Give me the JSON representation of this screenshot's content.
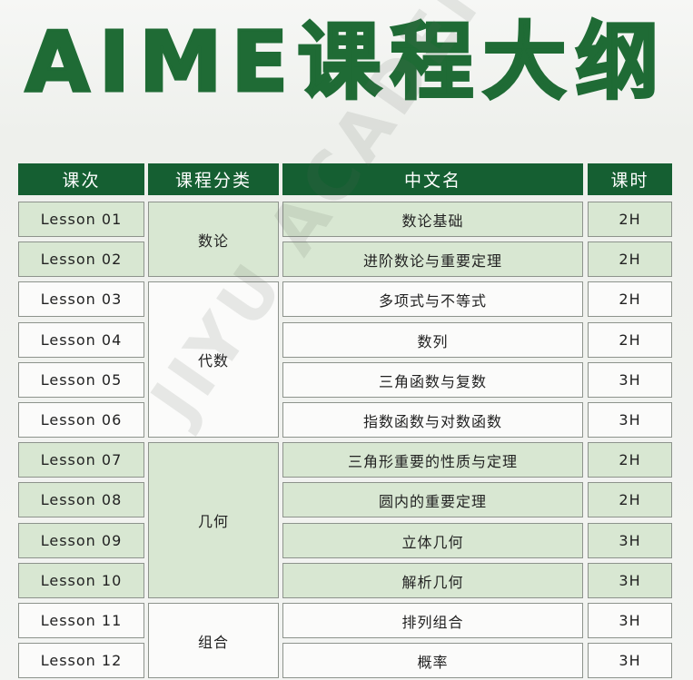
{
  "title": "AIME课程大纲",
  "watermark": "JIYU ACADEMY",
  "colors": {
    "header": "#155f32",
    "title": "#1f6b35",
    "group_fill": "#d8e7d2"
  },
  "table": {
    "headers": [
      "课次",
      "课程分类",
      "中文名",
      "课时"
    ],
    "categories": [
      {
        "name": "数论",
        "rows": 2
      },
      {
        "name": "代数",
        "rows": 4
      },
      {
        "name": "几何",
        "rows": 4
      },
      {
        "name": "组合",
        "rows": 2
      }
    ],
    "rows": [
      {
        "lesson": "Lesson 01",
        "name": "数论基础",
        "hours": "2H"
      },
      {
        "lesson": "Lesson 02",
        "name": "进阶数论与重要定理",
        "hours": "2H"
      },
      {
        "lesson": "Lesson 03",
        "name": "多项式与不等式",
        "hours": "2H"
      },
      {
        "lesson": "Lesson 04",
        "name": "数列",
        "hours": "2H"
      },
      {
        "lesson": "Lesson 05",
        "name": "三角函数与复数",
        "hours": "3H"
      },
      {
        "lesson": "Lesson 06",
        "name": "指数函数与对数函数",
        "hours": "3H"
      },
      {
        "lesson": "Lesson 07",
        "name": "三角形重要的性质与定理",
        "hours": "2H"
      },
      {
        "lesson": "Lesson 08",
        "name": "圆内的重要定理",
        "hours": "2H"
      },
      {
        "lesson": "Lesson 09",
        "name": "立体几何",
        "hours": "3H"
      },
      {
        "lesson": "Lesson 10",
        "name": "解析几何",
        "hours": "3H"
      },
      {
        "lesson": "Lesson 11",
        "name": "排列组合",
        "hours": "3H"
      },
      {
        "lesson": "Lesson 12",
        "name": "概率",
        "hours": "3H"
      }
    ]
  }
}
